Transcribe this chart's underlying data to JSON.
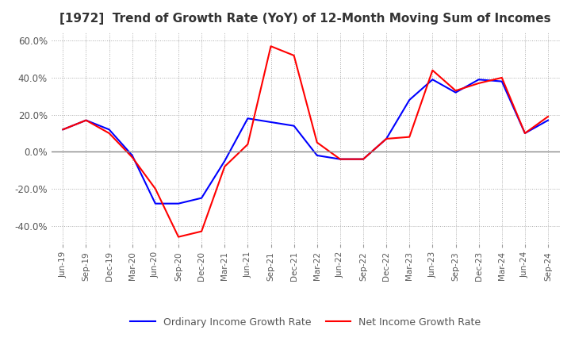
{
  "title": "[1972]  Trend of Growth Rate (YoY) of 12-Month Moving Sum of Incomes",
  "title_fontsize": 11,
  "legend_labels": [
    "Ordinary Income Growth Rate",
    "Net Income Growth Rate"
  ],
  "legend_colors": [
    "#0000FF",
    "#FF0000"
  ],
  "x_labels": [
    "Jun-19",
    "Sep-19",
    "Dec-19",
    "Mar-20",
    "Jun-20",
    "Sep-20",
    "Dec-20",
    "Mar-21",
    "Jun-21",
    "Sep-21",
    "Dec-21",
    "Mar-22",
    "Jun-22",
    "Sep-22",
    "Dec-22",
    "Mar-23",
    "Jun-23",
    "Sep-23",
    "Dec-23",
    "Mar-24",
    "Jun-24",
    "Sep-24"
  ],
  "ordinary_income": [
    12.0,
    17.0,
    12.0,
    -2.0,
    -28.0,
    -28.0,
    -25.0,
    -5.0,
    18.0,
    16.0,
    14.0,
    -2.0,
    -4.0,
    -4.0,
    7.0,
    28.0,
    39.0,
    32.0,
    39.0,
    38.0,
    10.0,
    17.0
  ],
  "net_income": [
    12.0,
    17.0,
    10.0,
    -3.0,
    -20.0,
    -46.0,
    -43.0,
    -8.0,
    4.0,
    57.0,
    52.0,
    5.0,
    -4.0,
    -4.0,
    7.0,
    8.0,
    44.0,
    33.0,
    37.0,
    40.0,
    10.0,
    19.0
  ],
  "ylim": [
    -50.0,
    65.0
  ],
  "yticks": [
    -40.0,
    -20.0,
    0.0,
    20.0,
    40.0,
    60.0
  ],
  "background_color": "#FFFFFF",
  "plot_bg_color": "#FFFFFF",
  "grid_color": "#AAAAAA",
  "line_width": 1.5
}
